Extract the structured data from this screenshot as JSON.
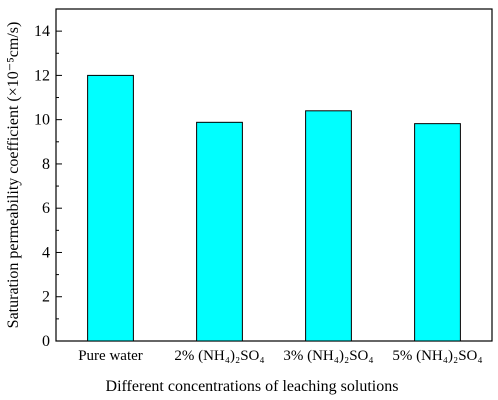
{
  "chart_data": {
    "type": "bar",
    "title": "",
    "xlabel": "Different concentrations of leaching solutions",
    "ylabel": "Saturation permeability coefficient (×10⁻⁵cm/s)",
    "categories": [
      "Pure water",
      "2% (NH₄)₂SO₄",
      "3% (NH₄)₂SO₄",
      "5% (NH₄)₂SO₄"
    ],
    "values": [
      12.0,
      9.88,
      10.4,
      9.82
    ],
    "ylim": [
      0,
      15
    ],
    "yticks": [
      0,
      2,
      4,
      6,
      8,
      10,
      12,
      14
    ],
    "y_tick_labels": [
      "0",
      "2",
      "4",
      "6",
      "8",
      "10",
      "12",
      "14"
    ],
    "grid": false,
    "legend": "none",
    "bar_color": "#00FFFF",
    "bar_edge_color": "#000000"
  }
}
